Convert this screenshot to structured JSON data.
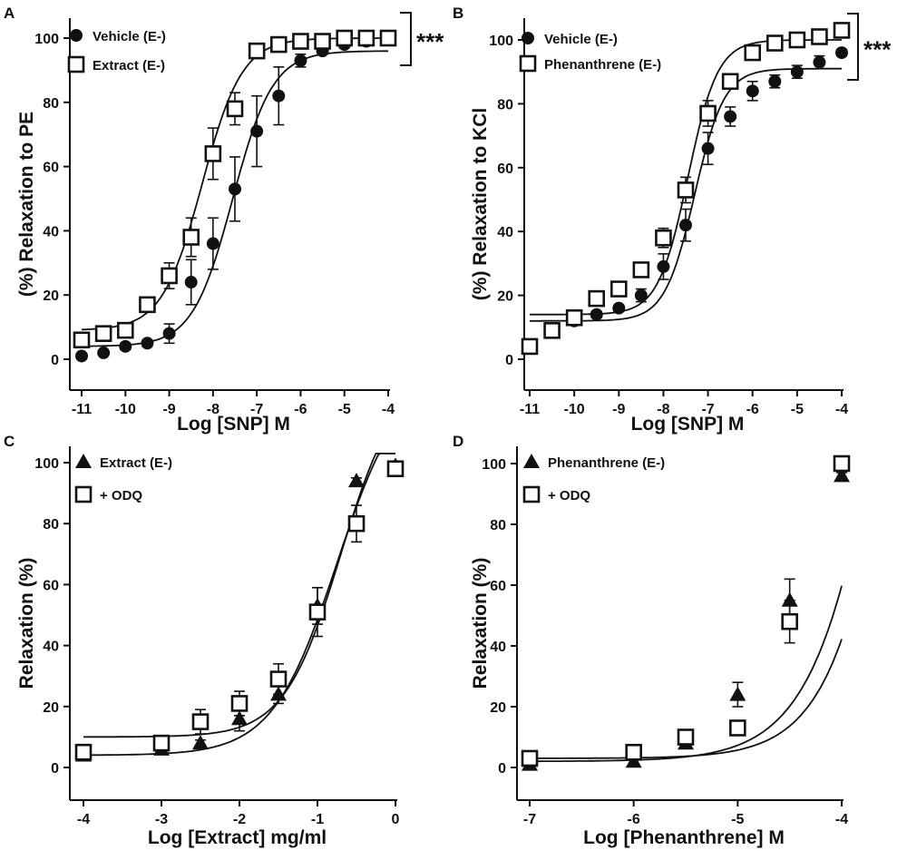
{
  "chart_data": [
    {
      "panel": "A",
      "type": "scatter",
      "xlabel": "Log [SNP] M",
      "ylabel": "(%) Relaxation to PE",
      "xlim": [
        -11,
        -4
      ],
      "ylim": [
        0,
        100
      ],
      "xticks": [
        -11,
        -10,
        -9,
        -8,
        -7,
        -6,
        -5,
        -4
      ],
      "yticks": [
        0,
        20,
        40,
        60,
        80,
        100
      ],
      "significance": "***",
      "series": [
        {
          "name": "Vehicle (E-)",
          "marker": "filled-circle",
          "x": [
            -11,
            -10.5,
            -10,
            -9.5,
            -9,
            -8.5,
            -8,
            -7.5,
            -7,
            -6.5,
            -6,
            -5.5,
            -5,
            -4.5,
            -4
          ],
          "y": [
            1,
            2,
            4,
            5,
            8,
            24,
            36,
            53,
            71,
            82,
            93,
            96,
            98,
            99,
            100
          ],
          "err": [
            0,
            0,
            1,
            1,
            3,
            7,
            8,
            10,
            11,
            9,
            2,
            1,
            1,
            1,
            1
          ],
          "fit": {
            "bottom": 4,
            "top": 96,
            "logec50": -7.55,
            "hill": 0.95
          }
        },
        {
          "name": "Extract (E-)",
          "marker": "open-square",
          "x": [
            -11,
            -10.5,
            -10,
            -9.5,
            -9,
            -8.5,
            -8,
            -7.5,
            -7,
            -6.5,
            -6,
            -5.5,
            -5,
            -4.5,
            -4
          ],
          "y": [
            6,
            8,
            9,
            17,
            26,
            38,
            64,
            78,
            96,
            98,
            99,
            99,
            100,
            100,
            100
          ],
          "err": [
            0,
            1,
            1,
            2,
            4,
            6,
            8,
            5,
            2,
            1,
            0,
            0,
            0,
            0,
            1
          ],
          "fit": {
            "bottom": 9,
            "top": 100,
            "logec50": -8.25,
            "hill": 0.95
          }
        }
      ]
    },
    {
      "panel": "B",
      "type": "scatter",
      "xlabel": "Log [SNP] M",
      "ylabel": "(%) Relaxation to KCl",
      "xlim": [
        -11,
        -4
      ],
      "ylim": [
        0,
        100
      ],
      "xticks": [
        -11,
        -10,
        -9,
        -8,
        -7,
        -6,
        -5,
        -4
      ],
      "yticks": [
        0,
        20,
        40,
        60,
        80,
        100
      ],
      "significance": "***",
      "series": [
        {
          "name": "Vehicle (E-)",
          "marker": "filled-circle",
          "x": [
            -11,
            -10.5,
            -10,
            -9.5,
            -9,
            -8.5,
            -8,
            -7.5,
            -7,
            -6.5,
            -6,
            -5.5,
            -5,
            -4.5,
            -4
          ],
          "y": [
            4,
            9,
            12,
            14,
            16,
            20,
            29,
            42,
            66,
            76,
            84,
            87,
            90,
            93,
            96
          ],
          "err": [
            1,
            1,
            1,
            1,
            1,
            2,
            4,
            5,
            5,
            3,
            3,
            2,
            2,
            2,
            1
          ],
          "fit": {
            "bottom": 12,
            "top": 91,
            "logec50": -7.3,
            "hill": 1.3
          }
        },
        {
          "name": "Phenanthrene (E-)",
          "marker": "open-square",
          "x": [
            -11,
            -10.5,
            -10,
            -9.5,
            -9,
            -8.5,
            -8,
            -7.5,
            -7,
            -6.5,
            -6,
            -5.5,
            -5,
            -4.5,
            -4
          ],
          "y": [
            4,
            9,
            13,
            19,
            22,
            28,
            38,
            53,
            77,
            87,
            96,
            99,
            100,
            101,
            103
          ],
          "err": [
            1,
            1,
            1,
            1,
            1,
            2,
            3,
            4,
            4,
            2,
            1,
            1,
            1,
            1,
            1
          ],
          "fit": {
            "bottom": 14,
            "top": 100,
            "logec50": -7.45,
            "hill": 1.3
          }
        }
      ]
    },
    {
      "panel": "C",
      "type": "scatter",
      "xlabel": "Log [Extract] mg/ml",
      "ylabel": "Relaxation (%)",
      "xlim": [
        -4,
        0
      ],
      "ylim": [
        0,
        100
      ],
      "xticks": [
        -4,
        -3,
        -2,
        -1,
        0
      ],
      "yticks": [
        0,
        20,
        40,
        60,
        80,
        100
      ],
      "series": [
        {
          "name": "Extract (E-)",
          "marker": "filled-triangle",
          "x": [
            -4,
            -3,
            -2.5,
            -2,
            -1.5,
            -1,
            -0.5,
            0
          ],
          "y": [
            4,
            6,
            8,
            16,
            24,
            53,
            94,
            99
          ],
          "err": [
            1,
            1,
            1,
            4,
            3,
            6,
            1,
            1
          ],
          "fit": {
            "bottom": 4,
            "top": 130,
            "logec50": -0.75,
            "hill": 1.05
          }
        },
        {
          "name": "+ ODQ",
          "marker": "open-square",
          "x": [
            -4,
            -3,
            -2.5,
            -2,
            -1.5,
            -1,
            -0.5,
            0
          ],
          "y": [
            5,
            8,
            15,
            21,
            29,
            51,
            80,
            98
          ],
          "err": [
            1,
            1,
            4,
            4,
            5,
            8,
            6,
            1
          ],
          "fit": {
            "bottom": 10,
            "top": 130,
            "logec50": -0.7,
            "hill": 1.2
          }
        }
      ]
    },
    {
      "panel": "D",
      "type": "scatter",
      "xlabel": "Log [Phenanthrene] M",
      "ylabel": "Relaxation (%)",
      "xlim": [
        -7,
        -4
      ],
      "ylim": [
        0,
        100
      ],
      "xticks": [
        -7,
        -6,
        -5,
        -4
      ],
      "yticks": [
        0,
        20,
        40,
        60,
        80,
        100
      ],
      "series": [
        {
          "name": "Phenanthrene (E-)",
          "marker": "filled-triangle",
          "x": [
            -7,
            -6,
            -5.5,
            -5,
            -4.5,
            -4
          ],
          "y": [
            1,
            2,
            8,
            24,
            55,
            96
          ],
          "err": [
            1,
            1,
            1,
            4,
            7,
            1
          ],
          "fit": {
            "bottom": 2,
            "top": 400,
            "logec50": -3.3,
            "hill": 1.1
          }
        },
        {
          "name": "+ ODQ",
          "marker": "open-square",
          "x": [
            -7,
            -6,
            -5.5,
            -5,
            -4.5,
            -4
          ],
          "y": [
            3,
            5,
            10,
            13,
            48,
            100
          ],
          "err": [
            1,
            1,
            2,
            2,
            7,
            1
          ],
          "fit": {
            "bottom": 3,
            "top": 400,
            "logec50": -3.2,
            "hill": 1.2
          }
        }
      ]
    }
  ]
}
